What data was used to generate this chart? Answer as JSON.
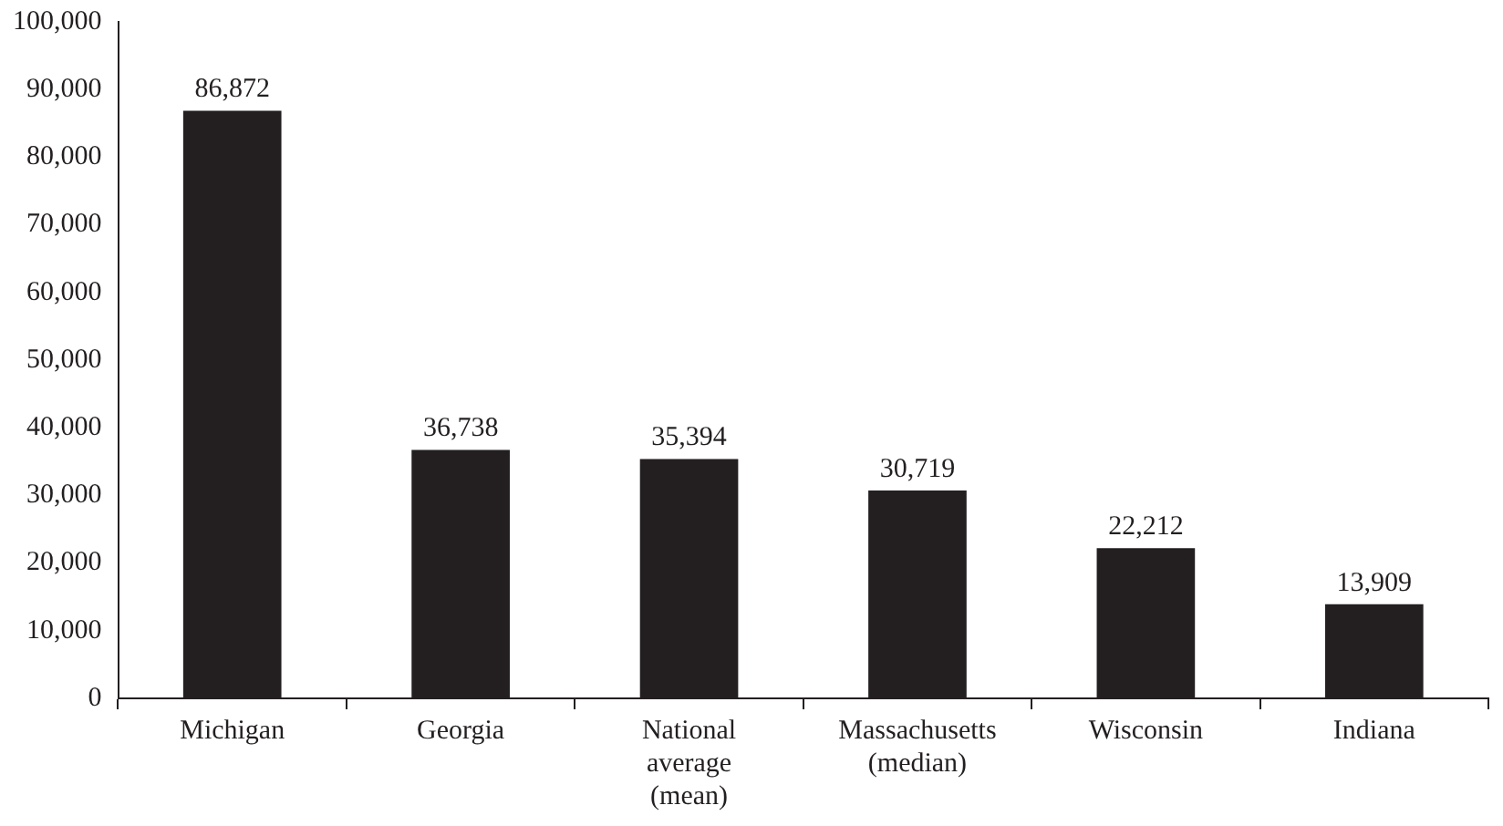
{
  "chart_data": {
    "type": "bar",
    "categories": [
      "Michigan",
      "Georgia",
      "National average (mean)",
      "Massachusetts (median)",
      "Wisconsin",
      "Indiana"
    ],
    "values": [
      86872,
      36738,
      35394,
      30719,
      22212,
      13909
    ],
    "color": "#231f20",
    "ylim": [
      0,
      100000
    ],
    "yticks": [
      0,
      {
        "value": 10000,
        "label": "10,000"
      },
      {
        "value": 20000,
        "label": "20,000"
      },
      {
        "value": 30000,
        "label": "30,000"
      },
      {
        "value": 40000,
        "label": "40,000"
      },
      {
        "value": 50000,
        "label": "50,000"
      },
      {
        "value": 60000,
        "label": "60,000"
      },
      {
        "value": 70000,
        "label": "70,000"
      },
      {
        "value": 80000,
        "label": "80,000"
      },
      {
        "value": 90000,
        "label": "90,000"
      },
      {
        "value": 100000,
        "label": "100,000"
      }
    ],
    "value_labels": [
      "86,872",
      "36,738",
      "35,394",
      "30,719",
      "22,212",
      "13,909"
    ],
    "grid": false,
    "legend": false
  }
}
